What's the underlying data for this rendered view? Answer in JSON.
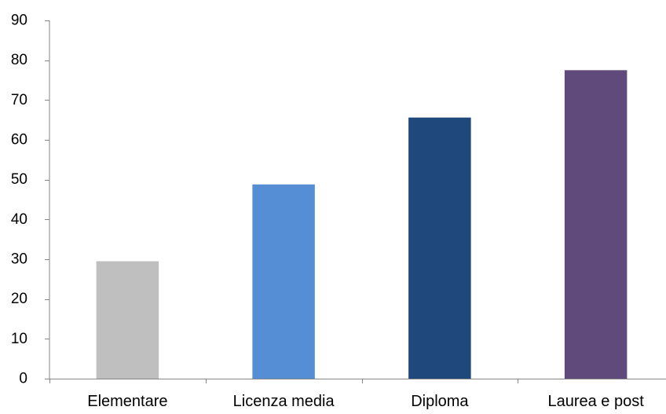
{
  "chart_data": {
    "type": "bar",
    "categories": [
      "Elementare",
      "Licenza media",
      "Diploma",
      "Laurea e post"
    ],
    "values": [
      29.5,
      48.8,
      65.6,
      77.5
    ],
    "colors": [
      "#bfbfbf",
      "#558ed5",
      "#1f497d",
      "#604a7b"
    ],
    "ylim": [
      0,
      90
    ],
    "yticks": [
      0,
      10,
      20,
      30,
      40,
      50,
      60,
      70,
      80,
      90
    ],
    "ytick_labels": [
      "0",
      "10",
      "20",
      "30",
      "40",
      "50",
      "60",
      "70",
      "80",
      "90"
    ],
    "grid": false,
    "legend": "none"
  }
}
